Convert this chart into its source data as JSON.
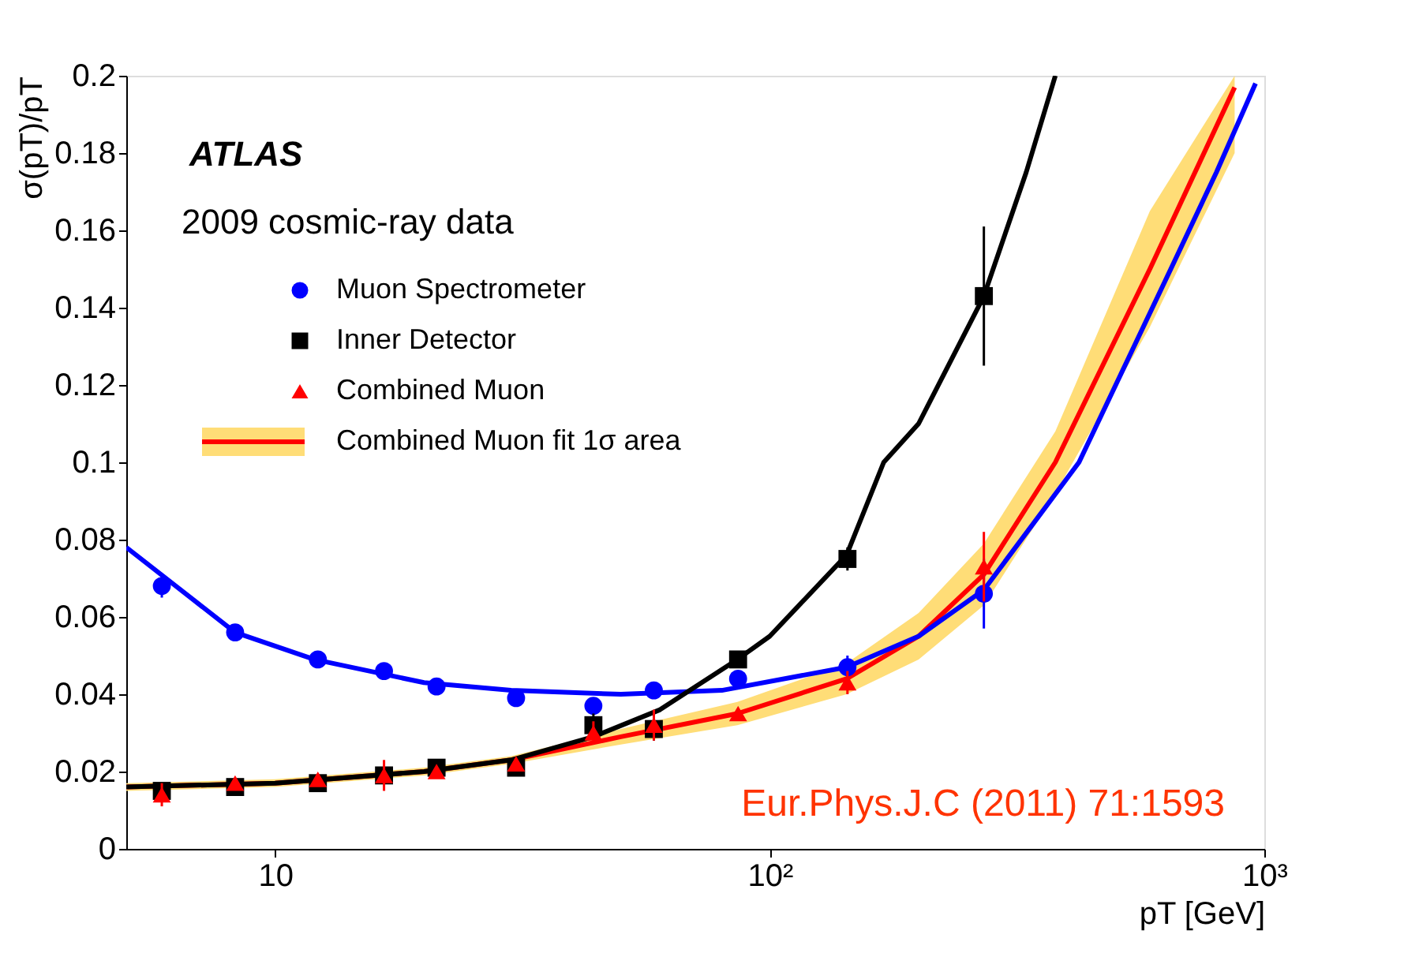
{
  "chart_data": {
    "type": "scatter",
    "xlabel": "pT [GeV]",
    "ylabel": "σ(pT)/pT",
    "log": "x",
    "xlim": [
      5,
      1000
    ],
    "ylim": [
      0,
      0.2
    ],
    "xticks": [
      10,
      {
        "value": 100,
        "label": "10²"
      },
      {
        "value": 1000,
        "label": "10³"
      }
    ],
    "yticks": [
      0,
      0.02,
      0.04,
      0.06,
      0.08,
      0.1,
      0.12,
      0.14,
      0.16,
      0.18,
      0.2
    ],
    "grid": false,
    "legend": "top left",
    "annotations": [
      "ATLAS",
      "2009 cosmic-ray data",
      "Eur.Phys.J.C (2011) 71:1593"
    ],
    "series": [
      {
        "type": "line",
        "color": "#ff0000",
        "name": "Combined Muon fit 1σ area",
        "x": [
          5,
          10,
          20,
          30,
          50,
          86,
          143,
          200,
          271,
          378,
          587,
          871
        ],
        "values": [
          0.016,
          0.017,
          0.02,
          0.023,
          0.029,
          0.035,
          0.044,
          0.055,
          0.071,
          0.1,
          0.15,
          0.197
        ],
        "lower": [
          0.015,
          0.016,
          0.019,
          0.022,
          0.027,
          0.032,
          0.04,
          0.049,
          0.063,
          0.092,
          0.135,
          0.18
        ],
        "upper": [
          0.017,
          0.018,
          0.021,
          0.024,
          0.031,
          0.038,
          0.048,
          0.061,
          0.079,
          0.108,
          0.165,
          0.2
        ]
      },
      {
        "type": "line",
        "color": "#0000ff",
        "x": [
          5,
          8.3,
          12,
          20,
          30,
          50,
          80,
          143,
          200,
          271,
          422,
          647,
          800,
          960
        ],
        "values": [
          0.078,
          0.056,
          0.049,
          0.043,
          0.041,
          0.04,
          0.041,
          0.047,
          0.055,
          0.067,
          0.1,
          0.15,
          0.175,
          0.198
        ]
      },
      {
        "type": "line",
        "color": "#000000",
        "x": [
          5,
          10,
          20,
          30,
          44,
          60,
          86,
          100,
          143,
          170,
          200,
          271,
          330,
          378
        ],
        "values": [
          0.016,
          0.017,
          0.02,
          0.023,
          0.029,
          0.036,
          0.049,
          0.055,
          0.076,
          0.1,
          0.11,
          0.143,
          0.175,
          0.2
        ]
      },
      {
        "name": "Muon Spectrometer",
        "color": "#0000ff",
        "marker": "circle",
        "x": [
          5.9,
          8.3,
          12.2,
          16.6,
          21.2,
          30.7,
          44,
          58.3,
          86.3,
          143.6,
          271
        ],
        "values": [
          0.068,
          0.056,
          0.049,
          0.046,
          0.042,
          0.039,
          0.037,
          0.041,
          0.044,
          0.047,
          0.066
        ],
        "errors": [
          0.003,
          0.002,
          0.001,
          0.002,
          0.002,
          0.002,
          0.002,
          0.002,
          0.002,
          0.003,
          0.009
        ]
      },
      {
        "name": "Inner Detector",
        "color": "#000000",
        "marker": "square",
        "x": [
          5.9,
          8.3,
          12.2,
          16.6,
          21.2,
          30.7,
          44,
          58.3,
          86.3,
          143.6,
          271
        ],
        "values": [
          0.015,
          0.016,
          0.017,
          0.019,
          0.021,
          0.021,
          0.032,
          0.031,
          0.049,
          0.075,
          0.143
        ],
        "errors": [
          0.002,
          0.002,
          0.002,
          0.002,
          0.002,
          0.002,
          0.003,
          0.003,
          0.002,
          0.003,
          0.018
        ]
      },
      {
        "name": "Combined Muon",
        "color": "#ff0000",
        "marker": "triangle",
        "x": [
          5.9,
          8.3,
          12.2,
          16.6,
          21.2,
          30.7,
          44,
          58.3,
          86.3,
          143.6,
          271
        ],
        "values": [
          0.014,
          0.017,
          0.018,
          0.019,
          0.02,
          0.022,
          0.03,
          0.032,
          0.035,
          0.043,
          0.073
        ],
        "errors": [
          0.003,
          null,
          null,
          0.004,
          null,
          null,
          0.003,
          0.004,
          null,
          0.003,
          0.009
        ]
      }
    ]
  }
}
